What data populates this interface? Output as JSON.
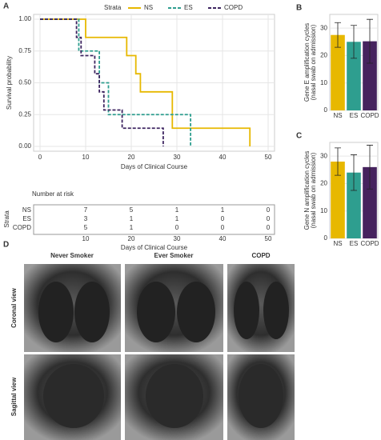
{
  "chart_data": [
    {
      "type": "step",
      "panel": "A",
      "legend_title": "Strata",
      "xlabel": "Days of Clinical Course",
      "ylabel": "Survival probability",
      "xlim": [
        0,
        50
      ],
      "xticks": [
        0,
        10,
        20,
        30,
        40,
        50
      ],
      "ylim": [
        0,
        1
      ],
      "yticks": [
        {
          "value": 0,
          "label": "0.00"
        },
        {
          "value": 0.25,
          "label": "0.25"
        },
        {
          "value": 0.5,
          "label": "0.50"
        },
        {
          "value": 0.75,
          "label": "0.75"
        },
        {
          "value": 1,
          "label": "1.00"
        }
      ],
      "grid": true,
      "series": [
        {
          "name": "NS",
          "color": "#e7b800",
          "dash": false,
          "x": [
            0,
            10,
            19,
            21,
            22,
            29,
            46
          ],
          "values": [
            1,
            0.857,
            0.714,
            0.571,
            0.429,
            0.143,
            0
          ]
        },
        {
          "name": "ES",
          "color": "#2e9e8f",
          "dash": true,
          "x": [
            0,
            8.5,
            13,
            15,
            33
          ],
          "values": [
            1,
            0.75,
            0.5,
            0.25,
            0
          ]
        },
        {
          "name": "COPD",
          "color": "#3d2460",
          "dash": true,
          "x": [
            0,
            8,
            9,
            12,
            13,
            14,
            18,
            27
          ],
          "values": [
            1,
            0.857,
            0.714,
            0.571,
            0.429,
            0.286,
            0.143,
            0
          ]
        }
      ],
      "risk_table": {
        "title": "Number at risk",
        "label": "Strata",
        "times": [
          10,
          20,
          30,
          40,
          50
        ],
        "counts": [
          [
            7,
            5,
            1,
            1,
            0
          ],
          [
            3,
            1,
            1,
            0,
            0
          ],
          [
            5,
            1,
            0,
            0,
            0
          ]
        ]
      }
    },
    {
      "type": "bar",
      "panel": "B",
      "ylabel": [
        "Gene E amplification cycles",
        "(nasal swab on admission)"
      ],
      "categories": [
        "NS",
        "ES",
        "COPD"
      ],
      "values": [
        27.5,
        25,
        25.2
      ],
      "errors": [
        4.5,
        6,
        8
      ],
      "colors": [
        "#e7b800",
        "#2e9e8f",
        "#46235e"
      ],
      "ylim": [
        0,
        35
      ],
      "yticks": [
        0,
        10,
        20,
        30
      ],
      "grid": true
    },
    {
      "type": "bar",
      "panel": "C",
      "ylabel": [
        "Gene N amplification cycles",
        "(nasal swab on admission)"
      ],
      "categories": [
        "NS",
        "ES",
        "COPD"
      ],
      "values": [
        28,
        24,
        26
      ],
      "errors": [
        5,
        6.5,
        8
      ],
      "colors": [
        "#e7b800",
        "#2e9e8f",
        "#46235e"
      ],
      "ylim": [
        0,
        35
      ],
      "yticks": [
        0,
        10,
        20,
        30
      ],
      "grid": true
    }
  ],
  "panel_d": {
    "label": "D",
    "columns": [
      "Never Smoker",
      "Ever Smoker",
      "COPD"
    ],
    "rows": [
      "Coronal view",
      "Sagittal view"
    ]
  }
}
